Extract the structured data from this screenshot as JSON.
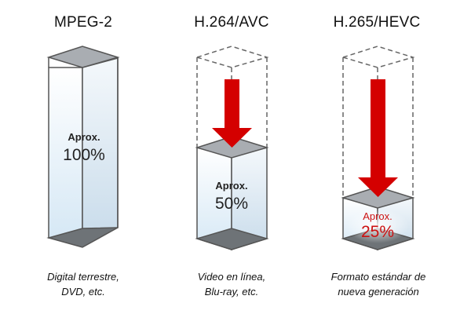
{
  "codecs": [
    {
      "title": "MPEG-2",
      "approx": "Aprox.",
      "percent": "100%",
      "caption_line1": "Digital terrestre,",
      "caption_line2": "DVD, etc.",
      "relative_size": 1.0
    },
    {
      "title": "H.264/AVC",
      "approx": "Aprox.",
      "percent": "50%",
      "caption_line1": "Video en línea,",
      "caption_line2": "Blu-ray, etc.",
      "relative_size": 0.5
    },
    {
      "title": "H.265/HEVC",
      "approx": "Aprox.",
      "percent": "25%",
      "caption_line1": "Formato estándar de",
      "caption_line2": "nueva generación",
      "relative_size": 0.25
    }
  ],
  "colors": {
    "prism_outline": "#555555",
    "prism_fill": "#e8f2fa",
    "top_face": "#a9adb2",
    "bottom_face": "#6e7377",
    "arrow": "#d40000",
    "highlight_text": "#cc1111"
  }
}
